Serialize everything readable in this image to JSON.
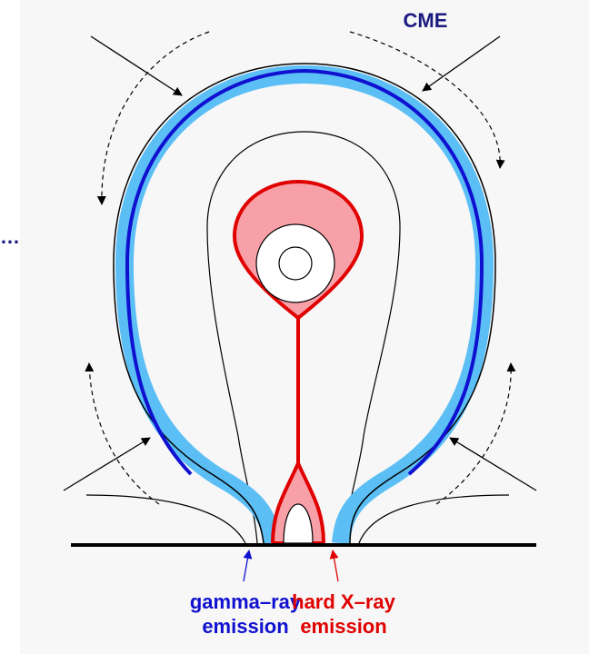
{
  "labels": {
    "cme": "CME",
    "left_edge": "…",
    "gamma_ray": "gamma–ray",
    "gamma_emission": "emission",
    "hard_xray": "hard X–ray",
    "xray_emission": "emission"
  }
}
